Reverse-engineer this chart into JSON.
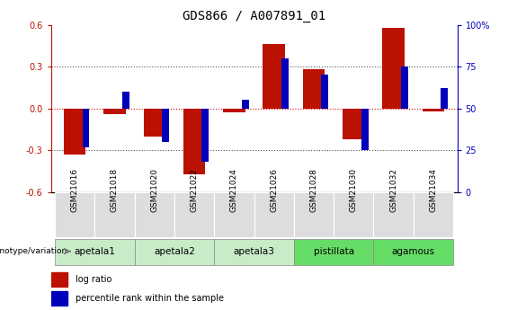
{
  "title": "GDS866 / A007891_01",
  "samples": [
    "GSM21016",
    "GSM21018",
    "GSM21020",
    "GSM21022",
    "GSM21024",
    "GSM21026",
    "GSM21028",
    "GSM21030",
    "GSM21032",
    "GSM21034"
  ],
  "log_ratio": [
    -0.33,
    -0.04,
    -0.2,
    -0.47,
    -0.03,
    0.46,
    0.28,
    -0.22,
    0.58,
    -0.02
  ],
  "percentile_rank": [
    27,
    60,
    30,
    18,
    55,
    80,
    70,
    25,
    75,
    62
  ],
  "groups": [
    {
      "label": "apetala1",
      "indices": [
        0,
        1
      ],
      "color": "#c8ecc8"
    },
    {
      "label": "apetala2",
      "indices": [
        2,
        3
      ],
      "color": "#c8ecc8"
    },
    {
      "label": "apetala3",
      "indices": [
        4,
        5
      ],
      "color": "#c8ecc8"
    },
    {
      "label": "pistillata",
      "indices": [
        6,
        7
      ],
      "color": "#66dd66"
    },
    {
      "label": "agamous",
      "indices": [
        8,
        9
      ],
      "color": "#66dd66"
    }
  ],
  "bar_color_red": "#bb1100",
  "bar_color_blue": "#0000bb",
  "ylim_left": [
    -0.6,
    0.6
  ],
  "ylim_right": [
    0,
    100
  ],
  "yticks_left": [
    -0.6,
    -0.3,
    0.0,
    0.3,
    0.6
  ],
  "yticks_right": [
    0,
    25,
    50,
    75,
    100
  ],
  "hline_color": "#dd0000",
  "dotted_line_color": "#555555",
  "background_color": "#ffffff",
  "bar_width": 0.55,
  "blue_bar_width": 0.18,
  "title_fontsize": 10,
  "sample_box_color": "#dddddd"
}
